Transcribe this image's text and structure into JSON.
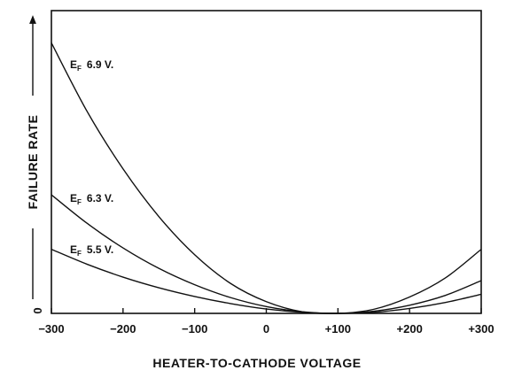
{
  "chart_data": {
    "type": "line",
    "title": "",
    "xlabel": "HEATER-TO-CATHODE VOLTAGE",
    "ylabel": "FAILURE RATE",
    "y_origin_label": "0",
    "x_ticks": [
      "−300",
      "−200",
      "−100",
      "0",
      "+100",
      "+200",
      "+300"
    ],
    "x_tick_values": [
      -300,
      -200,
      -100,
      0,
      100,
      200,
      300
    ],
    "xlim": [
      -300,
      300
    ],
    "ylim": [
      0,
      1
    ],
    "grid": false,
    "series": [
      {
        "name": "EF 6.9 V.",
        "label_main": "E",
        "label_sub": "F",
        "label_value": "6.9 V.",
        "x": [
          -300,
          -250,
          -200,
          -150,
          -100,
          -50,
          0,
          50,
          100,
          150,
          200,
          250,
          300
        ],
        "y": [
          0.992,
          0.74,
          0.53,
          0.355,
          0.215,
          0.11,
          0.043,
          0.006,
          0.0,
          0.015,
          0.06,
          0.13,
          0.235
        ]
      },
      {
        "name": "EF 6.3 V.",
        "label_main": "E",
        "label_sub": "F",
        "label_value": "6.3 V.",
        "x": [
          -300,
          -250,
          -200,
          -150,
          -100,
          -50,
          0,
          50,
          100,
          150,
          200,
          250,
          300
        ],
        "y": [
          0.435,
          0.33,
          0.24,
          0.165,
          0.105,
          0.058,
          0.025,
          0.006,
          0.0,
          0.008,
          0.03,
          0.066,
          0.12
        ]
      },
      {
        "name": "EF 5.5 V.",
        "label_main": "E",
        "label_sub": "F",
        "label_value": "5.5 V.",
        "x": [
          -300,
          -250,
          -200,
          -150,
          -100,
          -50,
          0,
          50,
          100,
          150,
          200,
          250,
          300
        ],
        "y": [
          0.235,
          0.18,
          0.133,
          0.094,
          0.062,
          0.036,
          0.016,
          0.004,
          0.0,
          0.004,
          0.018,
          0.04,
          0.07
        ]
      }
    ]
  }
}
